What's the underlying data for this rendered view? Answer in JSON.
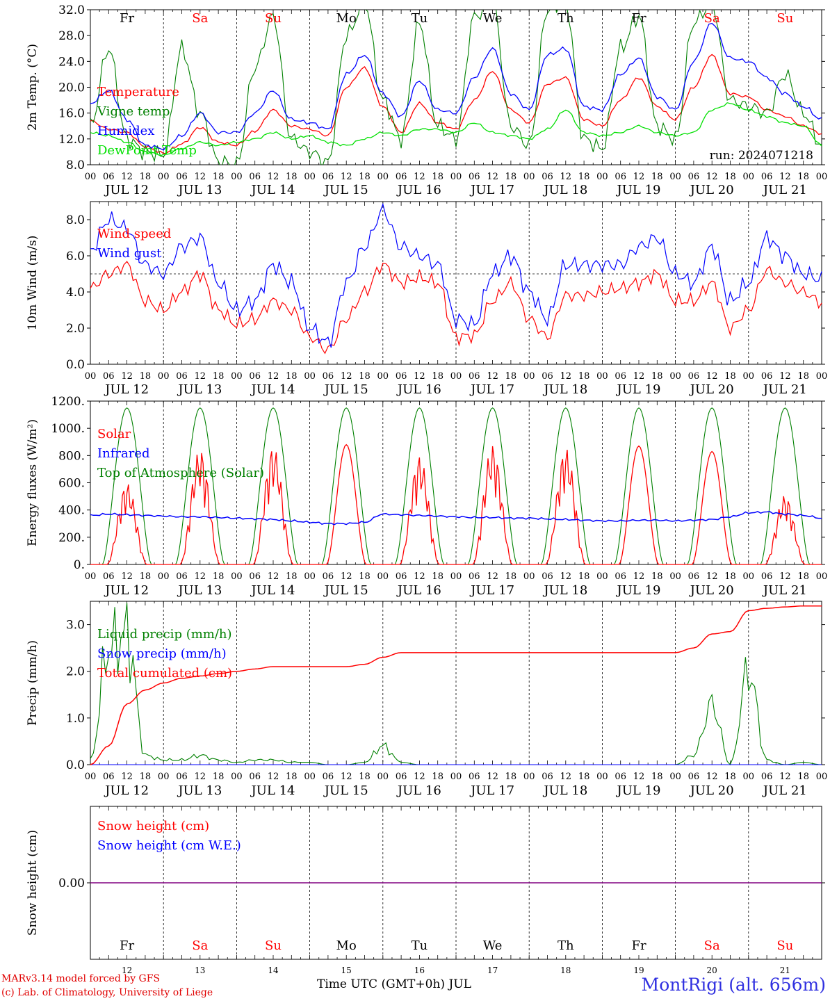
{
  "chart_data": [
    {
      "type": "line",
      "ylabel": "2m Temp. (°C)",
      "ylim": [
        8.0,
        32.0
      ],
      "yticks": [
        "8.0",
        "12.0",
        "16.0",
        "20.0",
        "24.0",
        "28.0",
        "32.0"
      ],
      "run_label": "run: 2024071218",
      "days": [
        "Fr",
        "Sa",
        "Su",
        "Mo",
        "Tu",
        "We",
        "Th",
        "Fr",
        "Sa",
        "Su"
      ],
      "weekend_days": [
        1,
        2,
        8,
        9
      ],
      "date_labels": [
        "JUL 12",
        "JUL 13",
        "JUL 14",
        "JUL 15",
        "JUL 16",
        "JUL 17",
        "JUL 18",
        "JUL 19",
        "JUL 20",
        "JUL 21"
      ],
      "hour_ticks": [
        "00",
        "06",
        "12",
        "18"
      ],
      "x_hours": [
        0,
        6,
        12,
        18,
        24,
        30,
        36,
        42,
        48,
        54,
        60,
        66,
        72,
        78,
        84,
        90,
        96,
        102,
        108,
        114,
        120,
        126,
        132,
        138,
        144,
        150,
        156,
        162,
        168,
        174,
        180,
        186,
        192,
        198,
        204,
        210,
        216,
        222,
        228,
        234,
        240
      ],
      "series": [
        {
          "name": "Temperature",
          "color": "#ff0000",
          "values": [
            14.8,
            13.5,
            13.0,
            10.8,
            9.8,
            11.2,
            13.8,
            11.5,
            11.0,
            13.2,
            16.5,
            14.0,
            13.5,
            12.5,
            20.0,
            23.0,
            17.0,
            13.0,
            17.5,
            14.5,
            13.5,
            18.0,
            22.5,
            16.5,
            14.5,
            20.5,
            21.5,
            15.0,
            14.0,
            18.0,
            21.5,
            17.0,
            15.0,
            20.0,
            25.0,
            19.0,
            18.5,
            16.5,
            15.5,
            14.0,
            12.8
          ]
        },
        {
          "name": "Vigne temp",
          "color": "#008000",
          "values": [
            14.0,
            26.0,
            12.0,
            10.0,
            9.5,
            26.0,
            16.0,
            8.5,
            8.0,
            23.0,
            31.0,
            12.0,
            10.0,
            8.3,
            28.0,
            33.0,
            18.0,
            12.0,
            30.0,
            14.0,
            12.0,
            31.0,
            33.0,
            14.0,
            11.0,
            32.0,
            33.0,
            12.0,
            10.5,
            26.0,
            31.0,
            14.0,
            12.0,
            30.0,
            33.0,
            18.0,
            17.0,
            16.0,
            22.0,
            16.0,
            11.0
          ]
        },
        {
          "name": "Humidex",
          "color": "#0000ff",
          "values": [
            17.5,
            19.5,
            15.0,
            11.0,
            10.5,
            12.5,
            16.0,
            13.0,
            13.0,
            16.0,
            19.5,
            15.0,
            14.5,
            13.5,
            22.0,
            25.0,
            19.0,
            15.5,
            21.0,
            16.5,
            16.0,
            21.5,
            26.0,
            19.0,
            16.5,
            25.0,
            26.0,
            17.0,
            16.5,
            22.0,
            24.5,
            18.5,
            16.5,
            24.0,
            30.0,
            24.5,
            24.0,
            21.5,
            19.0,
            17.0,
            15.0
          ]
        },
        {
          "name": "DewPoint Temp",
          "color": "#00e000",
          "values": [
            13.0,
            12.5,
            11.5,
            10.0,
            9.5,
            10.5,
            11.5,
            11.0,
            11.5,
            12.0,
            13.0,
            12.0,
            12.5,
            11.5,
            11.0,
            12.0,
            13.0,
            12.5,
            13.5,
            13.5,
            13.0,
            14.5,
            13.0,
            12.5,
            12.0,
            13.5,
            16.5,
            13.0,
            12.5,
            13.0,
            14.0,
            13.0,
            12.5,
            13.0,
            16.5,
            17.5,
            16.5,
            15.5,
            14.5,
            14.0,
            11.0
          ]
        }
      ]
    },
    {
      "type": "line",
      "ylabel": "10m Wind (m/s)",
      "ylim": [
        0.0,
        9.0
      ],
      "yticks": [
        "0.0",
        "2.0",
        "4.0",
        "6.0",
        "8.0"
      ],
      "reference_line": 5.0,
      "date_labels": [
        "JUL 12",
        "JUL 13",
        "JUL 14",
        "JUL 15",
        "JUL 16",
        "JUL 17",
        "JUL 18",
        "JUL 19",
        "JUL 20",
        "JUL 21"
      ],
      "hour_ticks": [
        "00",
        "06",
        "12",
        "18"
      ],
      "x_hours": [
        0,
        6,
        12,
        18,
        24,
        30,
        36,
        42,
        48,
        54,
        60,
        66,
        72,
        78,
        84,
        90,
        96,
        102,
        108,
        114,
        120,
        126,
        132,
        138,
        144,
        150,
        156,
        162,
        168,
        174,
        180,
        186,
        192,
        198,
        204,
        210,
        216,
        222,
        228,
        234,
        240
      ],
      "series": [
        {
          "name": "Wind speed",
          "color": "#ff0000",
          "values": [
            4.2,
            5.0,
            5.5,
            3.5,
            3.0,
            4.0,
            5.0,
            3.0,
            2.2,
            2.5,
            3.5,
            3.0,
            1.5,
            0.8,
            2.5,
            4.0,
            5.5,
            4.5,
            4.8,
            4.5,
            1.5,
            1.6,
            3.5,
            4.5,
            2.5,
            1.5,
            3.8,
            3.8,
            4.0,
            4.2,
            4.5,
            5.0,
            3.5,
            3.5,
            4.5,
            2.0,
            3.0,
            5.2,
            4.5,
            4.0,
            3.4
          ]
        },
        {
          "name": "Wind gust",
          "color": "#0000ff",
          "values": [
            6.3,
            8.0,
            7.5,
            5.5,
            5.0,
            6.5,
            7.0,
            4.5,
            3.0,
            3.5,
            5.5,
            4.5,
            2.0,
            1.2,
            4.5,
            6.5,
            8.5,
            6.5,
            6.0,
            5.5,
            2.5,
            2.2,
            5.0,
            6.0,
            4.0,
            2.5,
            5.5,
            5.5,
            5.5,
            5.5,
            6.5,
            7.0,
            5.0,
            4.5,
            6.5,
            3.5,
            4.5,
            7.0,
            6.0,
            5.0,
            4.7
          ]
        }
      ]
    },
    {
      "type": "line",
      "ylabel": "Energy fluxes (W/m²)",
      "ylim": [
        0,
        1200
      ],
      "yticks": [
        "0.",
        "200.",
        "400.",
        "600.",
        "800.",
        "1000.",
        "1200."
      ],
      "date_labels": [
        "JUL 12",
        "JUL 13",
        "JUL 14",
        "JUL 15",
        "JUL 16",
        "JUL 17",
        "JUL 18",
        "JUL 19",
        "JUL 20",
        "JUL 21"
      ],
      "hour_ticks": [
        "00",
        "06",
        "12",
        "18"
      ],
      "solar_peaks": [
        600,
        850,
        870,
        880,
        800,
        880,
        860,
        870,
        830,
        510
      ],
      "infrared_values": [
        360,
        370,
        365,
        360,
        355,
        350,
        350,
        345,
        340,
        335,
        330,
        320,
        310,
        300,
        300,
        310,
        370,
        365,
        360,
        355,
        350,
        345,
        345,
        340,
        340,
        335,
        330,
        325,
        320,
        320,
        325,
        325,
        320,
        325,
        330,
        350,
        380,
        385,
        370,
        360,
        340
      ],
      "series": [
        {
          "name": "Solar",
          "color": "#ff0000"
        },
        {
          "name": "Infrared",
          "color": "#0000ff"
        },
        {
          "name": "Top of Atmosphere (Solar)",
          "color": "#008000",
          "peak": 1150
        }
      ]
    },
    {
      "type": "line",
      "ylabel": "Precip (mm/h)",
      "ylim": [
        0.0,
        3.5
      ],
      "yticks": [
        "0.0",
        "1.0",
        "2.0",
        "3.0"
      ],
      "date_labels": [
        "JUL 12",
        "JUL 13",
        "JUL 14",
        "JUL 15",
        "JUL 16",
        "JUL 17",
        "JUL 18",
        "JUL 19",
        "JUL 20",
        "JUL 21"
      ],
      "hour_ticks": [
        "00",
        "06",
        "12",
        "18"
      ],
      "x_hours": [
        0,
        6,
        12,
        18,
        24,
        30,
        36,
        42,
        48,
        54,
        60,
        66,
        72,
        78,
        84,
        90,
        96,
        102,
        108,
        114,
        120,
        126,
        132,
        138,
        144,
        150,
        156,
        162,
        168,
        174,
        180,
        186,
        192,
        198,
        204,
        210,
        216,
        222,
        228,
        234,
        240
      ],
      "series": [
        {
          "name": "Liquid precip (mm/h)",
          "color": "#008000",
          "values": [
            0.1,
            2.5,
            2.8,
            0.2,
            0.1,
            0.1,
            0.2,
            0.1,
            0.05,
            0.1,
            0.1,
            0.05,
            0.05,
            0.0,
            0.0,
            0.05,
            0.4,
            0.05,
            0.0,
            0.0,
            0.0,
            0.0,
            0.0,
            0.0,
            0.0,
            0.0,
            0.0,
            0.0,
            0.0,
            0.0,
            0.0,
            0.0,
            0.0,
            0.2,
            1.3,
            0.0,
            2.0,
            0.1,
            0.0,
            0.05,
            0.0
          ]
        },
        {
          "name": "Snow precip (mm/h)",
          "color": "#0000ff",
          "values": [
            0,
            0,
            0,
            0,
            0,
            0,
            0,
            0,
            0,
            0,
            0,
            0,
            0,
            0,
            0,
            0,
            0,
            0,
            0,
            0,
            0,
            0,
            0,
            0,
            0,
            0,
            0,
            0,
            0,
            0,
            0,
            0,
            0,
            0,
            0,
            0,
            0,
            0,
            0,
            0,
            0
          ]
        },
        {
          "name": "Total cumulated (cm)",
          "color": "#ff0000",
          "values": [
            0.0,
            0.4,
            1.3,
            1.6,
            1.75,
            1.85,
            1.9,
            1.95,
            2.0,
            2.05,
            2.1,
            2.1,
            2.1,
            2.1,
            2.1,
            2.15,
            2.3,
            2.4,
            2.4,
            2.4,
            2.4,
            2.4,
            2.4,
            2.4,
            2.4,
            2.4,
            2.4,
            2.4,
            2.4,
            2.4,
            2.4,
            2.4,
            2.4,
            2.5,
            2.8,
            2.85,
            3.3,
            3.35,
            3.38,
            3.4,
            3.4
          ]
        }
      ]
    },
    {
      "type": "line",
      "ylabel": "Snow height (cm)",
      "ylim": [
        -0.5,
        0.5
      ],
      "yticks": [
        "0.00"
      ],
      "days": [
        "Fr",
        "Sa",
        "Su",
        "Mo",
        "Tu",
        "We",
        "Th",
        "Fr",
        "Sa",
        "Su"
      ],
      "weekend_days": [
        1,
        2,
        8,
        9
      ],
      "day_numbers": [
        "12",
        "13",
        "14",
        "15",
        "16",
        "17",
        "18",
        "19",
        "20",
        "21"
      ],
      "series": [
        {
          "name": "Snow height (cm)",
          "color": "#ff0000",
          "values": [
            0.0,
            0.0
          ]
        },
        {
          "name": "Snow height (cm W.E.)",
          "color": "#0000ff",
          "values": [
            0.0,
            0.0
          ]
        }
      ]
    }
  ],
  "footer": {
    "credit_line1": "MARv3.14 model forced by GFS",
    "credit_line2": "(c) Lab. of Climatology, University of Liege",
    "x_title": "Time UTC (GMT+0h) JUL",
    "station": "MontRigi (alt. 656m)"
  }
}
